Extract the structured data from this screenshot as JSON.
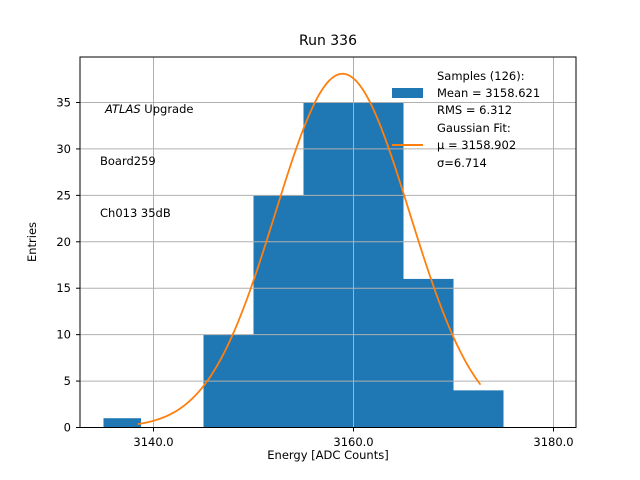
{
  "title": "Run 336",
  "annotation": {
    "line1_italic": "ATLAS",
    "line1_rest": " Upgrade",
    "line2": "Board259",
    "line3": "Ch013 35dB"
  },
  "legend": {
    "items": [
      {
        "label": "Samples (126):",
        "handle": "none"
      },
      {
        "label": "Mean = 3158.621",
        "handle": "patch"
      },
      {
        "label": "RMS = 6.312",
        "handle": "none"
      },
      {
        "label": "Gaussian Fit:",
        "handle": "none"
      },
      {
        "label": "μ = 3158.902",
        "handle": "line"
      },
      {
        "label": "σ=6.714",
        "handle": "none"
      }
    ]
  },
  "chart_data": {
    "type": "bar",
    "subtype": "histogram-with-gaussian-fit",
    "title": "Run 336",
    "xlabel": "Energy [ADC Counts]",
    "ylabel": "Entries",
    "xlim": [
      3132.65,
      3182.25
    ],
    "ylim": [
      0,
      39.9
    ],
    "xticks": [
      3140,
      3160,
      3180
    ],
    "xtick_labels": [
      "3140.0",
      "3160.0",
      "3180.0"
    ],
    "yticks": [
      0,
      5,
      10,
      15,
      20,
      25,
      30,
      35
    ],
    "ytick_labels": [
      "0",
      "5",
      "10",
      "15",
      "20",
      "25",
      "30",
      "35"
    ],
    "grid": true,
    "grid_color": "#b0b0b0",
    "bar_color": "#1f77b4",
    "curve_color": "#ff7f0e",
    "spine_color": "#000000",
    "legend_position": "upper right",
    "bars": [
      {
        "x0": 3135.0,
        "x1": 3138.75,
        "count": 1
      },
      {
        "x0": 3145.0,
        "x1": 3150.0,
        "count": 10
      },
      {
        "x0": 3150.0,
        "x1": 3155.0,
        "count": 25
      },
      {
        "x0": 3155.0,
        "x1": 3160.0,
        "count": 35
      },
      {
        "x0": 3160.0,
        "x1": 3165.0,
        "count": 35
      },
      {
        "x0": 3165.0,
        "x1": 3170.0,
        "count": 16
      },
      {
        "x0": 3170.0,
        "x1": 3175.0,
        "count": 4
      }
    ],
    "gaussian": {
      "mu": 3158.902,
      "sigma": 6.714,
      "amplitude": 38.1,
      "x_start": 3138.5,
      "x_end": 3172.65
    },
    "stats": {
      "samples": 126,
      "mean": 3158.621,
      "rms": 6.312
    }
  }
}
